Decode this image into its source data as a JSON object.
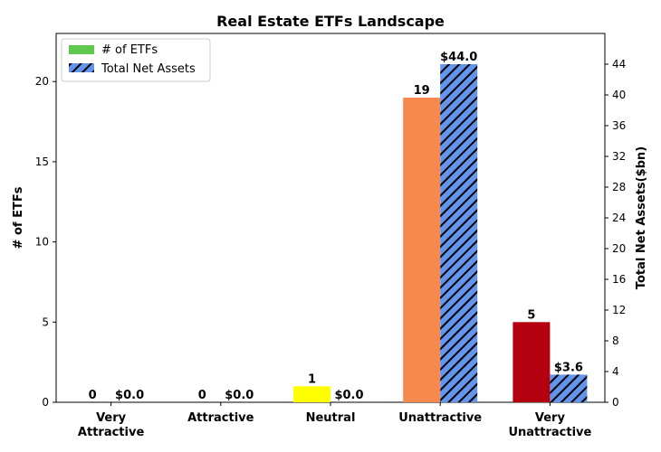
{
  "chart_data": {
    "type": "bar",
    "title": "Real Estate ETFs Landscape",
    "categories": [
      "Very\nAttractive",
      "Attractive",
      "Neutral",
      "Unattractive",
      "Very\nUnattractive"
    ],
    "series": [
      {
        "name": "# of ETFs",
        "axis": "left",
        "values": [
          0,
          0,
          1,
          19,
          5
        ],
        "labels": [
          "0",
          "0",
          "1",
          "19",
          "5"
        ],
        "colors": [
          "#5fc84f",
          "#5fc84f",
          "#ffff00",
          "#f7894f",
          "#b5000f"
        ]
      },
      {
        "name": "Total Net Assets",
        "axis": "right",
        "values": [
          0.0,
          0.0,
          0.0,
          44.0,
          3.6
        ],
        "labels": [
          "$0.0",
          "$0.0",
          "$0.0",
          "$44.0",
          "$3.6"
        ],
        "color": "#6495ed",
        "hatch": true
      }
    ],
    "ylabel_left": "# of ETFs",
    "ylabel_right": "Total Net Assets($bn)",
    "ylim_left": [
      0,
      23
    ],
    "ylim_right": [
      0,
      48
    ],
    "yticks_left": [
      0,
      5,
      10,
      15,
      20
    ],
    "yticks_right": [
      0,
      4,
      8,
      12,
      16,
      20,
      24,
      28,
      32,
      36,
      40,
      44
    ],
    "legend": {
      "position": "top-left",
      "swatch_color": "#5fc84f"
    },
    "grid": false
  }
}
